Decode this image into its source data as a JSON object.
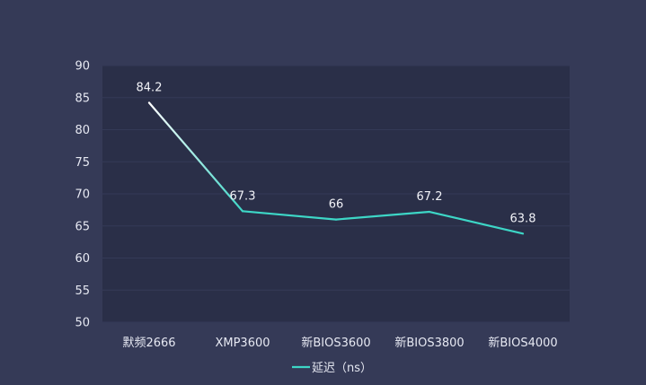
{
  "chart_data": {
    "type": "line",
    "categories": [
      "默频2666",
      "XMP3600",
      "新BIOS3600",
      "新BIOS3800",
      "新BIOS4000"
    ],
    "series": [
      {
        "name": "延迟（ns）",
        "values": [
          84.2,
          67.3,
          66,
          67.2,
          63.8
        ],
        "color": "#3dd6c6"
      }
    ],
    "ylim": [
      50,
      90
    ],
    "yticks": [
      50,
      55,
      60,
      65,
      70,
      75,
      80,
      85,
      90
    ],
    "grid": true,
    "legend": "bottom-center",
    "colors": {
      "background": "#353a57",
      "plot_background": "#2a2f48",
      "first_segment": "#ffffff"
    }
  }
}
